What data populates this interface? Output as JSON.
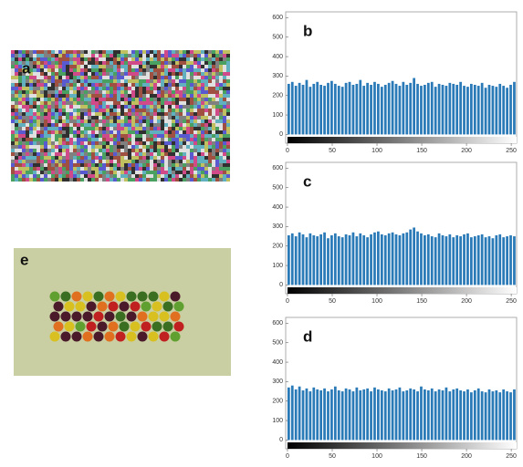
{
  "image_labels": [
    "a",
    "e"
  ],
  "chart_data": [
    {
      "type": "histogram",
      "panel_label": "b",
      "color": "#2a7ab8",
      "bins": [
        0,
        4,
        8,
        12,
        16,
        20,
        24,
        28,
        32,
        36,
        40,
        44,
        48,
        52,
        56,
        60,
        64,
        68,
        72,
        76,
        80,
        84,
        88,
        92,
        96,
        100,
        104,
        108,
        112,
        116,
        120,
        124,
        128,
        132,
        136,
        140,
        144,
        148,
        152,
        156,
        160,
        164,
        168,
        172,
        176,
        180,
        184,
        188,
        192,
        196,
        200,
        204,
        208,
        212,
        216,
        220,
        224,
        228,
        232,
        236,
        240,
        244,
        248,
        252,
        256
      ],
      "values": [
        260,
        270,
        250,
        265,
        255,
        280,
        245,
        260,
        270,
        255,
        250,
        265,
        275,
        260,
        250,
        245,
        265,
        270,
        255,
        260,
        280,
        250,
        265,
        255,
        270,
        260,
        245,
        255,
        265,
        275,
        260,
        250,
        270,
        255,
        265,
        290,
        260,
        250,
        255,
        265,
        270,
        245,
        260,
        255,
        250,
        265,
        260,
        255,
        270,
        250,
        245,
        260,
        255,
        250,
        265,
        240,
        255,
        250,
        245,
        260,
        250,
        240,
        255,
        270
      ],
      "xlim": [
        -2,
        256
      ],
      "ylim": [
        -45,
        630
      ],
      "xticks": [
        0,
        50,
        100,
        150,
        200,
        250
      ],
      "yticks": [
        0,
        100,
        200,
        300,
        400,
        500,
        600
      ]
    },
    {
      "type": "histogram",
      "panel_label": "c",
      "color": "#2a7ab8",
      "bins": [
        0,
        4,
        8,
        12,
        16,
        20,
        24,
        28,
        32,
        36,
        40,
        44,
        48,
        52,
        56,
        60,
        64,
        68,
        72,
        76,
        80,
        84,
        88,
        92,
        96,
        100,
        104,
        108,
        112,
        116,
        120,
        124,
        128,
        132,
        136,
        140,
        144,
        148,
        152,
        156,
        160,
        164,
        168,
        172,
        176,
        180,
        184,
        188,
        192,
        196,
        200,
        204,
        208,
        212,
        216,
        220,
        224,
        228,
        232,
        236,
        240,
        244,
        248,
        252,
        256
      ],
      "values": [
        255,
        265,
        250,
        270,
        260,
        245,
        265,
        255,
        250,
        260,
        270,
        240,
        255,
        265,
        250,
        245,
        260,
        255,
        270,
        250,
        265,
        255,
        245,
        260,
        270,
        275,
        260,
        255,
        265,
        270,
        260,
        255,
        265,
        270,
        285,
        295,
        275,
        265,
        255,
        260,
        250,
        245,
        265,
        255,
        250,
        260,
        245,
        255,
        250,
        260,
        265,
        245,
        250,
        255,
        260,
        245,
        250,
        240,
        255,
        260,
        245,
        250,
        255,
        250
      ],
      "xlim": [
        -2,
        256
      ],
      "ylim": [
        -45,
        630
      ],
      "xticks": [
        0,
        50,
        100,
        150,
        200,
        250
      ],
      "yticks": [
        0,
        100,
        200,
        300,
        400,
        500,
        600
      ]
    },
    {
      "type": "histogram",
      "panel_label": "d",
      "color": "#2a7ab8",
      "bins": [
        0,
        4,
        8,
        12,
        16,
        20,
        24,
        28,
        32,
        36,
        40,
        44,
        48,
        52,
        56,
        60,
        64,
        68,
        72,
        76,
        80,
        84,
        88,
        92,
        96,
        100,
        104,
        108,
        112,
        116,
        120,
        124,
        128,
        132,
        136,
        140,
        144,
        148,
        152,
        156,
        160,
        164,
        168,
        172,
        176,
        180,
        184,
        188,
        192,
        196,
        200,
        204,
        208,
        212,
        216,
        220,
        224,
        228,
        232,
        236,
        240,
        244,
        248,
        252,
        256
      ],
      "values": [
        270,
        280,
        260,
        275,
        255,
        265,
        250,
        270,
        260,
        255,
        265,
        250,
        260,
        275,
        255,
        250,
        265,
        260,
        250,
        270,
        255,
        260,
        265,
        250,
        270,
        260,
        255,
        250,
        265,
        255,
        260,
        270,
        250,
        255,
        265,
        260,
        250,
        275,
        260,
        255,
        265,
        250,
        260,
        255,
        270,
        250,
        260,
        265,
        255,
        250,
        260,
        245,
        255,
        265,
        250,
        245,
        260,
        250,
        255,
        245,
        260,
        250,
        245,
        260
      ],
      "xlim": [
        -2,
        256
      ],
      "ylim": [
        -45,
        630
      ],
      "xticks": [
        0,
        50,
        100,
        150,
        200,
        250
      ],
      "yticks": [
        0,
        100,
        200,
        300,
        400,
        500,
        600
      ]
    }
  ]
}
